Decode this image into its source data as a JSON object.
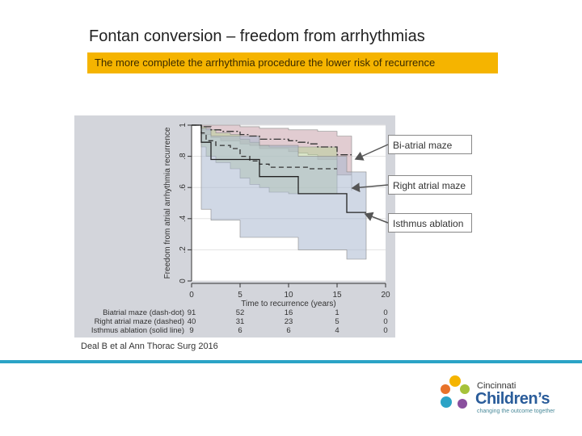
{
  "slide": {
    "title": "Fontan conversion – freedom from arrhythmias",
    "subtitle": "The more complete the arrhythmia procedure the lower risk of recurrence",
    "callouts": [
      "Bi-atrial maze",
      "Right atrial maze",
      "Isthmus ablation"
    ],
    "citation": "Deal B et al Ann Thorac Surg 2016",
    "logo": {
      "word1": "Cincinnati",
      "word2": "Children’s",
      "tagline": "changing the outcome together",
      "colors": [
        "#f5b400",
        "#e8732a",
        "#a6c23a",
        "#2ba3c6",
        "#8a4f9e"
      ]
    }
  },
  "chart_data": {
    "type": "line",
    "subtype": "kaplan-meier",
    "xlabel": "Time to recurrence (years)",
    "ylabel": "Freedom from atrial arrhythmia recurrence",
    "xlim": [
      0,
      20
    ],
    "ylim": [
      0,
      1
    ],
    "xticks": [
      0,
      5,
      10,
      15,
      20
    ],
    "yticks": [
      0,
      0.2,
      0.4,
      0.6,
      0.8,
      1
    ],
    "ytick_labels": [
      "0",
      ".2",
      ".4",
      ".6",
      ".8",
      "1"
    ],
    "series": [
      {
        "name": "Biatrial maze (dash-dot)",
        "style": "dash-dot",
        "color": "#333333",
        "band_color": "#c9a2ab",
        "x": [
          0,
          1,
          2,
          3,
          5,
          6,
          7,
          10,
          11,
          12,
          13,
          15,
          16.5
        ],
        "y": [
          1,
          0.99,
          0.97,
          0.96,
          0.94,
          0.93,
          0.91,
          0.9,
          0.89,
          0.88,
          0.86,
          0.81,
          0.81
        ],
        "upper": [
          1,
          1,
          1,
          1,
          0.99,
          0.99,
          0.98,
          0.97,
          0.97,
          0.97,
          0.96,
          0.93,
          0.9
        ],
        "lower": [
          1,
          0.94,
          0.92,
          0.9,
          0.88,
          0.87,
          0.85,
          0.83,
          0.82,
          0.81,
          0.78,
          0.68,
          0.58
        ]
      },
      {
        "name": "Right atrial maze (dashed)",
        "style": "dashed",
        "color": "#333333",
        "band_color": "#b9cf9a",
        "x": [
          0,
          1,
          1.5,
          2.5,
          4,
          5,
          6,
          7,
          8,
          10,
          12,
          14,
          15
        ],
        "y": [
          1,
          0.95,
          0.9,
          0.87,
          0.85,
          0.8,
          0.77,
          0.75,
          0.73,
          0.73,
          0.72,
          0.72,
          0.72
        ],
        "upper": [
          1,
          0.99,
          0.97,
          0.95,
          0.94,
          0.91,
          0.89,
          0.87,
          0.86,
          0.86,
          0.86,
          0.86,
          0.86
        ],
        "lower": [
          1,
          0.86,
          0.8,
          0.76,
          0.72,
          0.66,
          0.62,
          0.6,
          0.57,
          0.56,
          0.56,
          0.56,
          0.56
        ]
      },
      {
        "name": "Isthmus ablation (solid line)",
        "style": "solid",
        "color": "#222222",
        "band_color": "#aab8cf",
        "x": [
          0,
          1,
          2,
          3,
          5,
          7,
          10,
          11,
          15,
          16,
          18
        ],
        "y": [
          1,
          0.89,
          0.78,
          0.78,
          0.78,
          0.67,
          0.67,
          0.56,
          0.56,
          0.44,
          0.44
        ],
        "upper": [
          1,
          0.98,
          0.93,
          0.93,
          0.93,
          0.87,
          0.87,
          0.8,
          0.8,
          0.7,
          0.7
        ],
        "lower": [
          1,
          0.46,
          0.39,
          0.39,
          0.28,
          0.28,
          0.28,
          0.2,
          0.2,
          0.14,
          0.14
        ]
      }
    ],
    "risk_table": {
      "rows": [
        {
          "label": "Biatrial maze (dash-dot)",
          "values": [
            "91",
            "52",
            "16",
            "1",
            "0"
          ]
        },
        {
          "label": "Right atrial maze (dashed)",
          "values": [
            "40",
            "31",
            "23",
            "5",
            "0"
          ]
        },
        {
          "label": "Isthmus ablation (solid line)",
          "values": [
            "9",
            "6",
            "6",
            "4",
            "0"
          ]
        }
      ]
    },
    "grid": true,
    "legend": "none"
  }
}
